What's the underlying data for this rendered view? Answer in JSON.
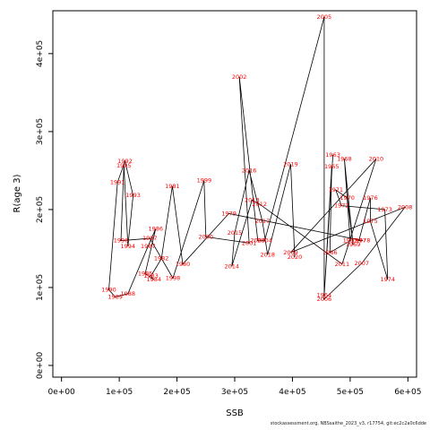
{
  "chart_data": {
    "type": "line",
    "xlabel": "SSB",
    "ylabel": "R(age 3)",
    "xlim": [
      -15000,
      615000
    ],
    "ylim": [
      -15000,
      455000
    ],
    "xticks": [
      0,
      100000,
      200000,
      300000,
      400000,
      500000,
      600000
    ],
    "xtick_labels": [
      "0e+00",
      "1e+05",
      "2e+05",
      "3e+05",
      "4e+05",
      "5e+05",
      "6e+05"
    ],
    "yticks": [
      0,
      100000,
      200000,
      300000,
      400000
    ],
    "ytick_labels": [
      "0e+00",
      "1e+05",
      "2e+05",
      "3e+05",
      "4e+05"
    ],
    "points": [
      {
        "label": "1963",
        "x": 470000,
        "y": 270000
      },
      {
        "label": "1964",
        "x": 455000,
        "y": 90000
      },
      {
        "label": "1965",
        "x": 468000,
        "y": 255000
      },
      {
        "label": "1966",
        "x": 465000,
        "y": 145000
      },
      {
        "label": "1967",
        "x": 500000,
        "y": 160000
      },
      {
        "label": "1968",
        "x": 490000,
        "y": 265000
      },
      {
        "label": "1969",
        "x": 505000,
        "y": 155000
      },
      {
        "label": "1970",
        "x": 495000,
        "y": 215000
      },
      {
        "label": "1971",
        "x": 475000,
        "y": 225000
      },
      {
        "label": "1972",
        "x": 485000,
        "y": 205000
      },
      {
        "label": "1973",
        "x": 560000,
        "y": 200000
      },
      {
        "label": "1974",
        "x": 565000,
        "y": 110000
      },
      {
        "label": "1975",
        "x": 535000,
        "y": 185000
      },
      {
        "label": "1976",
        "x": 535000,
        "y": 215000
      },
      {
        "label": "1977",
        "x": 515000,
        "y": 160000
      },
      {
        "label": "1978",
        "x": 522000,
        "y": 160000
      },
      {
        "label": "1979",
        "x": 290000,
        "y": 195000
      },
      {
        "label": "1980",
        "x": 210000,
        "y": 130000
      },
      {
        "label": "1981",
        "x": 192000,
        "y": 230000
      },
      {
        "label": "1982",
        "x": 173000,
        "y": 137000
      },
      {
        "label": "1983",
        "x": 155000,
        "y": 115000
      },
      {
        "label": "1984",
        "x": 160000,
        "y": 110000
      },
      {
        "label": "1985",
        "x": 145000,
        "y": 118000
      },
      {
        "label": "1986",
        "x": 163000,
        "y": 175000
      },
      {
        "label": "1987",
        "x": 150000,
        "y": 153000
      },
      {
        "label": "1988",
        "x": 115000,
        "y": 92000
      },
      {
        "label": "1989",
        "x": 93000,
        "y": 88000
      },
      {
        "label": "1990",
        "x": 82000,
        "y": 97000
      },
      {
        "label": "1991",
        "x": 97000,
        "y": 235000
      },
      {
        "label": "1992",
        "x": 110000,
        "y": 262000
      },
      {
        "label": "1993",
        "x": 124000,
        "y": 218000
      },
      {
        "label": "1994",
        "x": 115000,
        "y": 153000
      },
      {
        "label": "1995",
        "x": 108000,
        "y": 256000
      },
      {
        "label": "1996",
        "x": 103000,
        "y": 160000
      },
      {
        "label": "1997",
        "x": 153000,
        "y": 163000
      },
      {
        "label": "1998",
        "x": 193000,
        "y": 112000
      },
      {
        "label": "1999",
        "x": 247000,
        "y": 237000
      },
      {
        "label": "2000",
        "x": 250000,
        "y": 165000
      },
      {
        "label": "2001",
        "x": 325000,
        "y": 157000
      },
      {
        "label": "2002",
        "x": 308000,
        "y": 370000
      },
      {
        "label": "2003",
        "x": 340000,
        "y": 160000
      },
      {
        "label": "2004",
        "x": 352000,
        "y": 160000
      },
      {
        "label": "2005",
        "x": 455000,
        "y": 447000
      },
      {
        "label": "2006",
        "x": 455000,
        "y": 85000
      },
      {
        "label": "2007",
        "x": 520000,
        "y": 131000
      },
      {
        "label": "2008",
        "x": 595000,
        "y": 203000
      },
      {
        "label": "2009",
        "x": 397000,
        "y": 145000
      },
      {
        "label": "2010",
        "x": 545000,
        "y": 265000
      },
      {
        "label": "2011",
        "x": 486000,
        "y": 130000
      },
      {
        "label": "2012",
        "x": 343000,
        "y": 207000
      },
      {
        "label": "2013",
        "x": 330000,
        "y": 212000
      },
      {
        "label": "2014",
        "x": 295000,
        "y": 127000
      },
      {
        "label": "2015",
        "x": 300000,
        "y": 170000
      },
      {
        "label": "2016",
        "x": 325000,
        "y": 250000
      },
      {
        "label": "2017",
        "x": 348000,
        "y": 185000
      },
      {
        "label": "2018",
        "x": 357000,
        "y": 142000
      },
      {
        "label": "2019",
        "x": 397000,
        "y": 258000
      },
      {
        "label": "2020",
        "x": 404000,
        "y": 139000
      }
    ],
    "path_order": [
      "1963",
      "1964",
      "1965",
      "1966",
      "1967",
      "1968",
      "1969",
      "1970",
      "1971",
      "1972",
      "1973",
      "1974",
      "1975",
      "1976",
      "1977",
      "1978",
      "1979",
      "1980",
      "1981",
      "1982",
      "1983",
      "1984",
      "1985",
      "1986",
      "1987",
      "1988",
      "1989",
      "1990",
      "1991",
      "1992",
      "1993",
      "1994",
      "1995",
      "1996",
      "1997",
      "1998",
      "1999",
      "2000",
      "2001",
      "2002",
      "2003",
      "2004",
      "2005",
      "2006",
      "2007",
      "2008",
      "2009",
      "2010",
      "2011",
      "2012",
      "2013",
      "2014",
      "2015",
      "2016",
      "2017",
      "2018",
      "2019",
      "2020"
    ],
    "grid": false
  },
  "footer": "stockassessment.org, NBSsaithe_2023_v3, r17754, git:ec2c2a0c6dde"
}
